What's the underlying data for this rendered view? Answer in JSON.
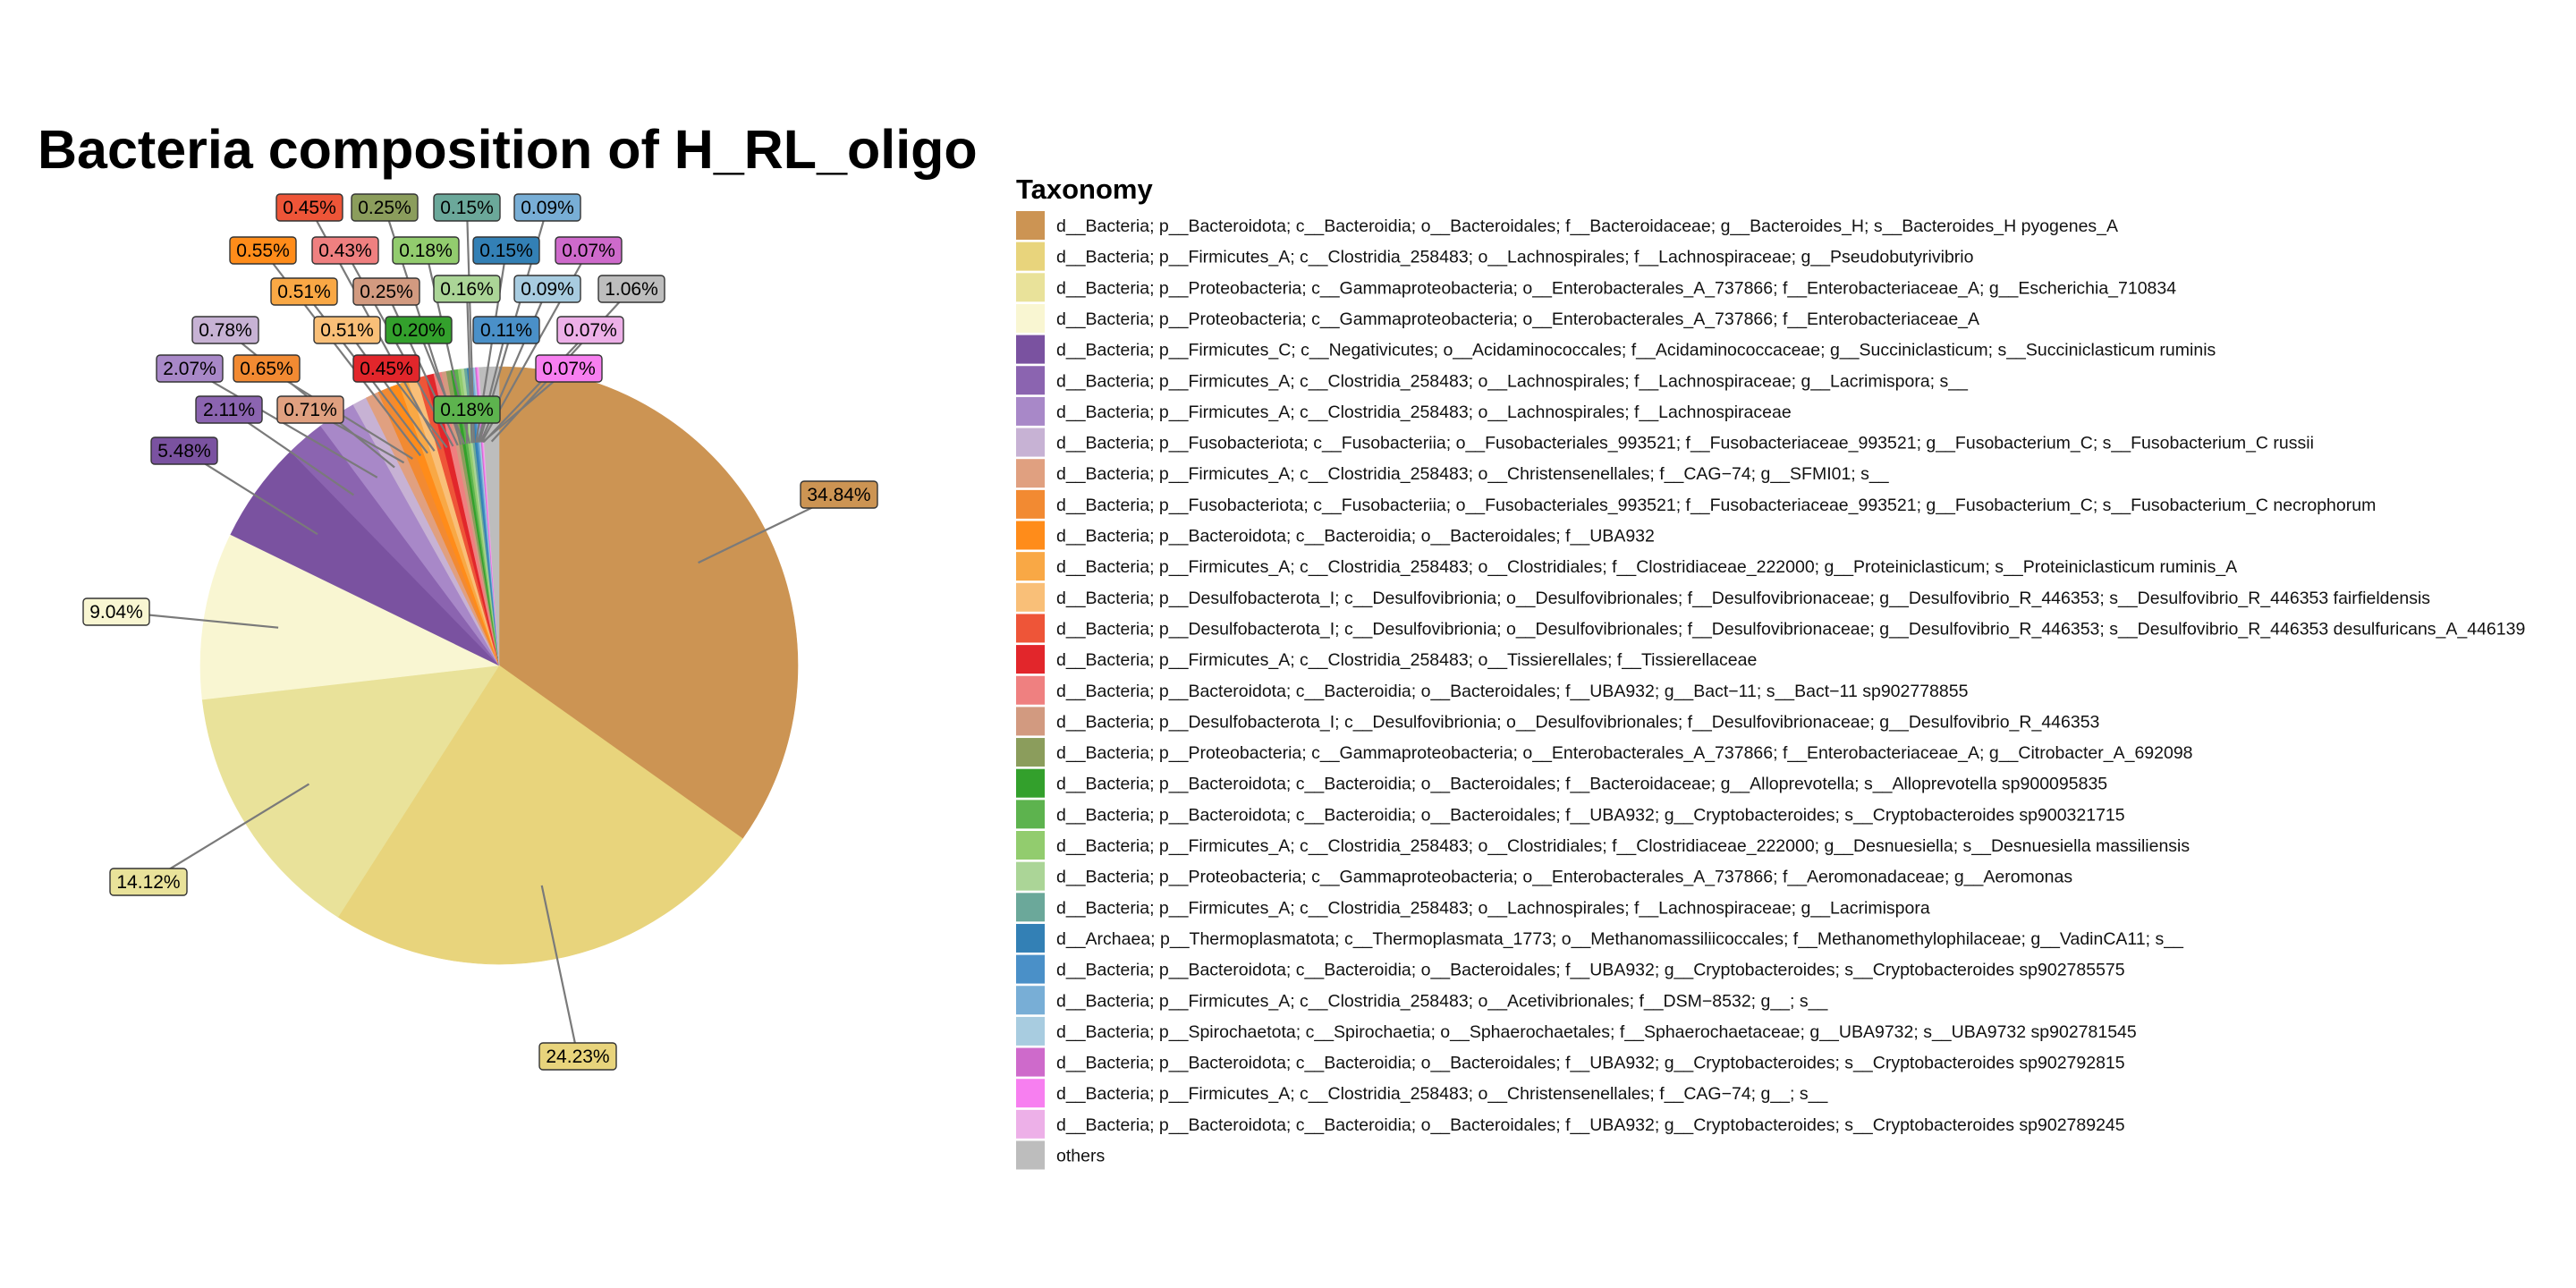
{
  "chart_data": {
    "type": "pie",
    "title": "Bacteria composition of H_RL_oligo",
    "legend_title": "Taxonomy",
    "legend_position": "right",
    "slices": [
      {
        "label": "d__Bacteria; p__Bacteroidota; c__Bacteroidia; o__Bacteroidales; f__Bacteroidaceae; g__Bacteroides_H; s__Bacteroides_H pyogenes_A",
        "value": 34.84,
        "value_label": "34.84%",
        "color": "#CC9453"
      },
      {
        "label": "d__Bacteria; p__Firmicutes_A; c__Clostridia_258483; o__Lachnospirales; f__Lachnospiraceae; g__Pseudobutyrivibrio",
        "value": 24.23,
        "value_label": "24.23%",
        "color": "#E8D47C"
      },
      {
        "label": "d__Bacteria; p__Proteobacteria; c__Gammaproteobacteria; o__Enterobacterales_A_737866; f__Enterobacteriaceae_A; g__Escherichia_710834",
        "value": 14.12,
        "value_label": "14.12%",
        "color": "#E9E29A"
      },
      {
        "label": "d__Bacteria; p__Proteobacteria; c__Gammaproteobacteria; o__Enterobacterales_A_737866; f__Enterobacteriaceae_A",
        "value": 9.04,
        "value_label": "9.04%",
        "color": "#F9F6D2"
      },
      {
        "label": "d__Bacteria; p__Firmicutes_C; c__Negativicutes; o__Acidaminococcales; f__Acidaminococcaceae; g__Succiniclasticum; s__Succiniclasticum ruminis",
        "value": 5.48,
        "value_label": "5.48%",
        "color": "#7A52A0"
      },
      {
        "label": "d__Bacteria; p__Firmicutes_A; c__Clostridia_258483; o__Lachnospirales; f__Lachnospiraceae; g__Lacrimispora; s__",
        "value": 2.11,
        "value_label": "2.11%",
        "color": "#8B64B0"
      },
      {
        "label": "d__Bacteria; p__Firmicutes_A; c__Clostridia_258483; o__Lachnospirales; f__Lachnospiraceae",
        "value": 2.07,
        "value_label": "2.07%",
        "color": "#A888C8"
      },
      {
        "label": "d__Bacteria; p__Fusobacteriota; c__Fusobacteriia; o__Fusobacteriales_993521; f__Fusobacteriaceae_993521; g__Fusobacterium_C; s__Fusobacterium_C russii",
        "value": 0.78,
        "value_label": "0.78%",
        "color": "#C7B2D4"
      },
      {
        "label": "d__Bacteria; p__Firmicutes_A; c__Clostridia_258483; o__Christensenellales; f__CAG−74; g__SFMI01; s__",
        "value": 0.71,
        "value_label": "0.71%",
        "color": "#E0A080"
      },
      {
        "label": "d__Bacteria; p__Fusobacteriota; c__Fusobacteriia; o__Fusobacteriales_993521; f__Fusobacteriaceae_993521; g__Fusobacterium_C; s__Fusobacterium_C necrophorum",
        "value": 0.65,
        "value_label": "0.65%",
        "color": "#F28A32"
      },
      {
        "label": "d__Bacteria; p__Bacteroidota; c__Bacteroidia; o__Bacteroidales; f__UBA932",
        "value": 0.55,
        "value_label": "0.55%",
        "color": "#FF8C1A"
      },
      {
        "label": "d__Bacteria; p__Firmicutes_A; c__Clostridia_258483; o__Clostridiales; f__Clostridiaceae_222000; g__Proteiniclasticum; s__Proteiniclasticum ruminis_A",
        "value": 0.51,
        "value_label": "0.51%",
        "color": "#F9A845"
      },
      {
        "label": "d__Bacteria; p__Desulfobacterota_I; c__Desulfovibrionia; o__Desulfovibrionales; f__Desulfovibrionaceae; g__Desulfovibrio_R_446353; s__Desulfovibrio_R_446353 fairfieldensis",
        "value": 0.51,
        "value_label": "0.51%",
        "color": "#F9BF78"
      },
      {
        "label": "d__Bacteria; p__Desulfobacterota_I; c__Desulfovibrionia; o__Desulfovibrionales; f__Desulfovibrionaceae; g__Desulfovibrio_R_446353; s__Desulfovibrio_R_446353 desulfuricans_A_446139",
        "value": 0.45,
        "value_label": "0.45%",
        "color": "#EE5538"
      },
      {
        "label": "d__Bacteria; p__Firmicutes_A; c__Clostridia_258483; o__Tissierellales; f__Tissierellaceae",
        "value": 0.45,
        "value_label": "0.45%",
        "color": "#E2262B"
      },
      {
        "label": "d__Bacteria; p__Bacteroidota; c__Bacteroidia; o__Bacteroidales; f__UBA932; g__Bact−11; s__Bact−11 sp902778855",
        "value": 0.43,
        "value_label": "0.43%",
        "color": "#EF8080"
      },
      {
        "label": "d__Bacteria; p__Desulfobacterota_I; c__Desulfovibrionia; o__Desulfovibrionales; f__Desulfovibrionaceae; g__Desulfovibrio_R_446353",
        "value": 0.25,
        "value_label": "0.25%",
        "color": "#D29A80"
      },
      {
        "label": "d__Bacteria; p__Proteobacteria; c__Gammaproteobacteria; o__Enterobacterales_A_737866; f__Enterobacteriaceae_A; g__Citrobacter_A_692098",
        "value": 0.25,
        "value_label": "0.25%",
        "color": "#8B9D5C"
      },
      {
        "label": "d__Bacteria; p__Bacteroidota; c__Bacteroidia; o__Bacteroidales; f__Bacteroidaceae; g__Alloprevotella; s__Alloprevotella sp900095835",
        "value": 0.2,
        "value_label": "0.20%",
        "color": "#33A02C"
      },
      {
        "label": "d__Bacteria; p__Bacteroidota; c__Bacteroidia; o__Bacteroidales; f__UBA932; g__Cryptobacteroides; s__Cryptobacteroides sp900321715",
        "value": 0.18,
        "value_label": "0.18%",
        "color": "#5DB34E"
      },
      {
        "label": "d__Bacteria; p__Firmicutes_A; c__Clostridia_258483; o__Clostridiales; f__Clostridiaceae_222000; g__Desnuesiella; s__Desnuesiella massiliensis",
        "value": 0.18,
        "value_label": "0.18%",
        "color": "#92CC6E"
      },
      {
        "label": "d__Bacteria; p__Proteobacteria; c__Gammaproteobacteria; o__Enterobacterales_A_737866; f__Aeromonadaceae; g__Aeromonas",
        "value": 0.16,
        "value_label": "0.16%",
        "color": "#ABD597"
      },
      {
        "label": "d__Bacteria; p__Firmicutes_A; c__Clostridia_258483; o__Lachnospirales; f__Lachnospiraceae; g__Lacrimispora",
        "value": 0.15,
        "value_label": "0.15%",
        "color": "#6BA89A"
      },
      {
        "label": "d__Archaea; p__Thermoplasmatota; c__Thermoplasmata_1773; o__Methanomassiliicoccales; f__Methanomethylophilaceae; g__VadinCA11; s__",
        "value": 0.15,
        "value_label": "0.15%",
        "color": "#3380B5"
      },
      {
        "label": "d__Bacteria; p__Bacteroidota; c__Bacteroidia; o__Bacteroidales; f__UBA932; g__Cryptobacteroides; s__Cryptobacteroides sp902785575",
        "value": 0.11,
        "value_label": "0.11%",
        "color": "#4A90C8"
      },
      {
        "label": "d__Bacteria; p__Firmicutes_A; c__Clostridia_258483; o__Acetivibrionales; f__DSM−8532; g__; s__",
        "value": 0.09,
        "value_label": "0.09%",
        "color": "#78AED6"
      },
      {
        "label": "d__Bacteria; p__Spirochaetota; c__Spirochaetia; o__Sphaerochaetales; f__Sphaerochaetaceae; g__UBA9732; s__UBA9732 sp902781545",
        "value": 0.09,
        "value_label": "0.09%",
        "color": "#A8CCE0"
      },
      {
        "label": "d__Bacteria; p__Bacteroidota; c__Bacteroidia; o__Bacteroidales; f__UBA932; g__Cryptobacteroides; s__Cryptobacteroides sp902792815",
        "value": 0.07,
        "value_label": "0.07%",
        "color": "#CE6ACB"
      },
      {
        "label": "d__Bacteria; p__Firmicutes_A; c__Clostridia_258483; o__Christensenellales; f__CAG−74; g__; s__",
        "value": 0.07,
        "value_label": "0.07%",
        "color": "#F77FF0"
      },
      {
        "label": "d__Bacteria; p__Bacteroidota; c__Bacteroidia; o__Bacteroidales; f__UBA932; g__Cryptobacteroides; s__Cryptobacteroides sp902789245",
        "value": 0.07,
        "value_label": "0.07%",
        "color": "#EDB0E8"
      },
      {
        "label": "others",
        "value": 1.06,
        "value_label": "1.06%",
        "color": "#BDBDBD"
      }
    ]
  }
}
